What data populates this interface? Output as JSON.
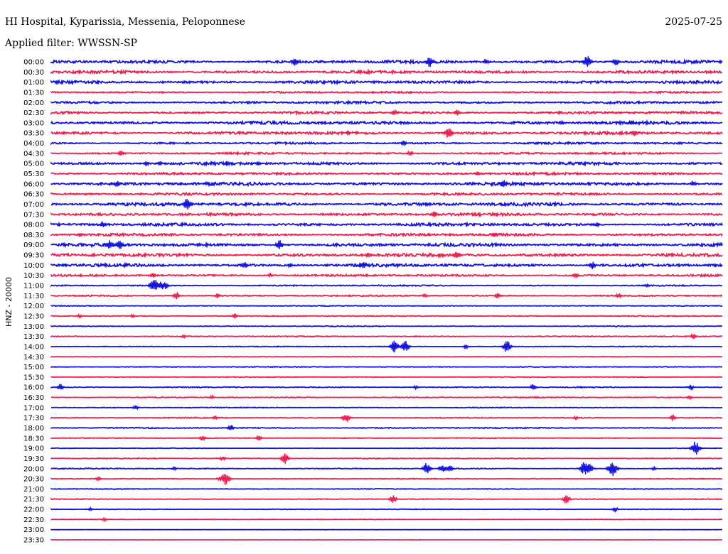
{
  "chart_data": {
    "type": "line",
    "title": "HI Hospital, Kyparissia, Messenia, Peloponnese",
    "date": "2025-07-25",
    "subtitle": "Applied filter: WWSSN-SP",
    "xlabel": "",
    "ylabel": "HNZ - 20000",
    "colors": [
      "#1414e0",
      "#ee2050"
    ],
    "rows": [
      {
        "time": "00:00",
        "noise": 0.15
      },
      {
        "time": "00:30",
        "noise": 0.15
      },
      {
        "time": "01:00",
        "noise": 0.14
      },
      {
        "time": "01:30",
        "noise": 0.09
      },
      {
        "time": "02:00",
        "noise": 0.12
      },
      {
        "time": "02:30",
        "noise": 0.12
      },
      {
        "time": "03:00",
        "noise": 0.15
      },
      {
        "time": "03:30",
        "noise": 0.14
      },
      {
        "time": "04:00",
        "noise": 0.1
      },
      {
        "time": "04:30",
        "noise": 0.1
      },
      {
        "time": "05:00",
        "noise": 0.14
      },
      {
        "time": "05:30",
        "noise": 0.12
      },
      {
        "time": "06:00",
        "noise": 0.16
      },
      {
        "time": "06:30",
        "noise": 0.12
      },
      {
        "time": "07:00",
        "noise": 0.16
      },
      {
        "time": "07:30",
        "noise": 0.14
      },
      {
        "time": "08:00",
        "noise": 0.14
      },
      {
        "time": "08:30",
        "noise": 0.13
      },
      {
        "time": "09:00",
        "noise": 0.16
      },
      {
        "time": "09:30",
        "noise": 0.16
      },
      {
        "time": "10:00",
        "noise": 0.15
      },
      {
        "time": "10:30",
        "noise": 0.1
      },
      {
        "time": "11:00",
        "noise": 0.06
      },
      {
        "time": "11:30",
        "noise": 0.07
      },
      {
        "time": "12:00",
        "noise": 0.04
      },
      {
        "time": "12:30",
        "noise": 0.05
      },
      {
        "time": "13:00",
        "noise": 0.04
      },
      {
        "time": "13:30",
        "noise": 0.05
      },
      {
        "time": "14:00",
        "noise": 0.04
      },
      {
        "time": "14:30",
        "noise": 0.03
      },
      {
        "time": "15:00",
        "noise": 0.04
      },
      {
        "time": "15:30",
        "noise": 0.04
      },
      {
        "time": "16:00",
        "noise": 0.05
      },
      {
        "time": "16:30",
        "noise": 0.05
      },
      {
        "time": "17:00",
        "noise": 0.04
      },
      {
        "time": "17:30",
        "noise": 0.05
      },
      {
        "time": "18:00",
        "noise": 0.06
      },
      {
        "time": "18:30",
        "noise": 0.04
      },
      {
        "time": "19:00",
        "noise": 0.03
      },
      {
        "time": "19:30",
        "noise": 0.04
      },
      {
        "time": "20:00",
        "noise": 0.05
      },
      {
        "time": "20:30",
        "noise": 0.04
      },
      {
        "time": "21:00",
        "noise": 0.04
      },
      {
        "time": "21:30",
        "noise": 0.04
      },
      {
        "time": "22:00",
        "noise": 0.03
      },
      {
        "time": "22:30",
        "noise": 0.02
      },
      {
        "time": "23:00",
        "noise": 0.01
      },
      {
        "time": "23:30",
        "noise": 0.01
      }
    ],
    "events": [
      {
        "t": "00:10:54",
        "amp": 0.45
      },
      {
        "t": "00:16:56",
        "amp": 0.55
      },
      {
        "t": "00:19:27",
        "amp": 0.3
      },
      {
        "t": "00:23:58",
        "amp": 0.65
      },
      {
        "t": "00:25:14",
        "amp": 0.4
      },
      {
        "t": "02:45:21",
        "amp": 0.35
      },
      {
        "t": "02:48:09",
        "amp": 0.3
      },
      {
        "t": "03:22:49",
        "amp": 0.25
      },
      {
        "t": "03:25:56",
        "amp": 0.3
      },
      {
        "t": "03:43:17",
        "amp": 0.2
      },
      {
        "t": "03:47:46",
        "amp": 0.6
      },
      {
        "t": "03:56:05",
        "amp": 0.35
      },
      {
        "t": "04:15:46",
        "amp": 0.3
      },
      {
        "t": "04:33:07",
        "amp": 0.35
      },
      {
        "t": "04:46:03",
        "amp": 0.3
      },
      {
        "t": "05:04:16",
        "amp": 0.25
      },
      {
        "t": "05:04:52",
        "amp": 0.25
      },
      {
        "t": "05:07:53",
        "amp": 0.25
      },
      {
        "t": "05:09:15",
        "amp": 0.25
      },
      {
        "t": "05:49:04",
        "amp": 0.25
      },
      {
        "t": "06:02:57",
        "amp": 0.35
      },
      {
        "t": "06:20:13",
        "amp": 0.4
      },
      {
        "t": "06:28:42",
        "amp": 0.35
      },
      {
        "t": "07:06:06",
        "amp": 0.65
      },
      {
        "t": "07:47:08",
        "amp": 0.35
      },
      {
        "t": "08:02:19",
        "amp": 0.3
      },
      {
        "t": "08:24:24",
        "amp": 0.25
      },
      {
        "t": "08:31:16",
        "amp": 0.25
      },
      {
        "t": "08:49:50",
        "amp": 0.35
      },
      {
        "t": "09:02:38",
        "amp": 0.5
      },
      {
        "t": "09:03:03",
        "amp": 0.5
      },
      {
        "t": "09:10:12",
        "amp": 0.5
      },
      {
        "t": "09:44:09",
        "amp": 0.25
      },
      {
        "t": "09:48:07",
        "amp": 0.45
      },
      {
        "t": "10:08:39",
        "amp": 0.35
      },
      {
        "t": "10:10:41",
        "amp": 0.25
      },
      {
        "t": "10:13:57",
        "amp": 0.45
      },
      {
        "t": "10:24:11",
        "amp": 0.4
      },
      {
        "t": "10:34:33",
        "amp": 0.3
      },
      {
        "t": "10:39:47",
        "amp": 0.2
      },
      {
        "t": "10:53:27",
        "amp": 0.3
      },
      {
        "t": "11:04:36",
        "amp": 0.7
      },
      {
        "t": "11:04:56",
        "amp": 0.45
      },
      {
        "t": "11:05:07",
        "amp": 0.35
      },
      {
        "t": "11:26:38",
        "amp": 0.2
      },
      {
        "t": "11:35:36",
        "amp": 0.4
      },
      {
        "t": "11:37:26",
        "amp": 0.25
      },
      {
        "t": "11:46:43",
        "amp": 0.25
      },
      {
        "t": "11:49:57",
        "amp": 0.3
      },
      {
        "t": "11:55:22",
        "amp": 0.3
      },
      {
        "t": "12:31:16",
        "amp": 0.2
      },
      {
        "t": "12:33:39",
        "amp": 0.2
      },
      {
        "t": "12:38:12",
        "amp": 0.3
      },
      {
        "t": "13:35:55",
        "amp": 0.2
      },
      {
        "t": "13:58:42",
        "amp": 0.3
      },
      {
        "t": "14:15:21",
        "amp": 0.65
      },
      {
        "t": "14:15:50",
        "amp": 0.6
      },
      {
        "t": "14:18:32",
        "amp": 0.25
      },
      {
        "t": "14:20:22",
        "amp": 0.6
      },
      {
        "t": "16:00:25",
        "amp": 0.35
      },
      {
        "t": "16:16:18",
        "amp": 0.2
      },
      {
        "t": "16:21:33",
        "amp": 0.35
      },
      {
        "t": "16:28:36",
        "amp": 0.3
      },
      {
        "t": "16:37:11",
        "amp": 0.2
      },
      {
        "t": "16:58:32",
        "amp": 0.25
      },
      {
        "t": "17:03:47",
        "amp": 0.3
      },
      {
        "t": "17:37:20",
        "amp": 0.25
      },
      {
        "t": "17:43:11",
        "amp": 0.55
      },
      {
        "t": "17:53:27",
        "amp": 0.2
      },
      {
        "t": "17:57:47",
        "amp": 0.35
      },
      {
        "t": "18:08:02",
        "amp": 0.35
      },
      {
        "t": "18:36:46",
        "amp": 0.3
      },
      {
        "t": "18:39:17",
        "amp": 0.3
      },
      {
        "t": "19:28:48",
        "amp": 0.7
      },
      {
        "t": "19:37:40",
        "amp": 0.3
      },
      {
        "t": "19:40:27",
        "amp": 0.55
      },
      {
        "t": "20:05:30",
        "amp": 0.2
      },
      {
        "t": "20:16:47",
        "amp": 0.6
      },
      {
        "t": "20:17:29",
        "amp": 0.45
      },
      {
        "t": "20:17:48",
        "amp": 0.45
      },
      {
        "t": "20:23:50",
        "amp": 0.7
      },
      {
        "t": "20:24:03",
        "amp": 0.5
      },
      {
        "t": "20:25:06",
        "amp": 0.8
      },
      {
        "t": "20:26:57",
        "amp": 0.2
      },
      {
        "t": "20:32:06",
        "amp": 0.25
      },
      {
        "t": "20:37:30",
        "amp": 0.2
      },
      {
        "t": "20:37:47",
        "amp": 0.7
      },
      {
        "t": "21:45:17",
        "amp": 0.45
      },
      {
        "t": "21:53:02",
        "amp": 0.5
      },
      {
        "t": "22:01:45",
        "amp": 0.2
      },
      {
        "t": "22:25:12",
        "amp": 0.3
      },
      {
        "t": "22:32:23",
        "amp": 0.2
      }
    ]
  }
}
